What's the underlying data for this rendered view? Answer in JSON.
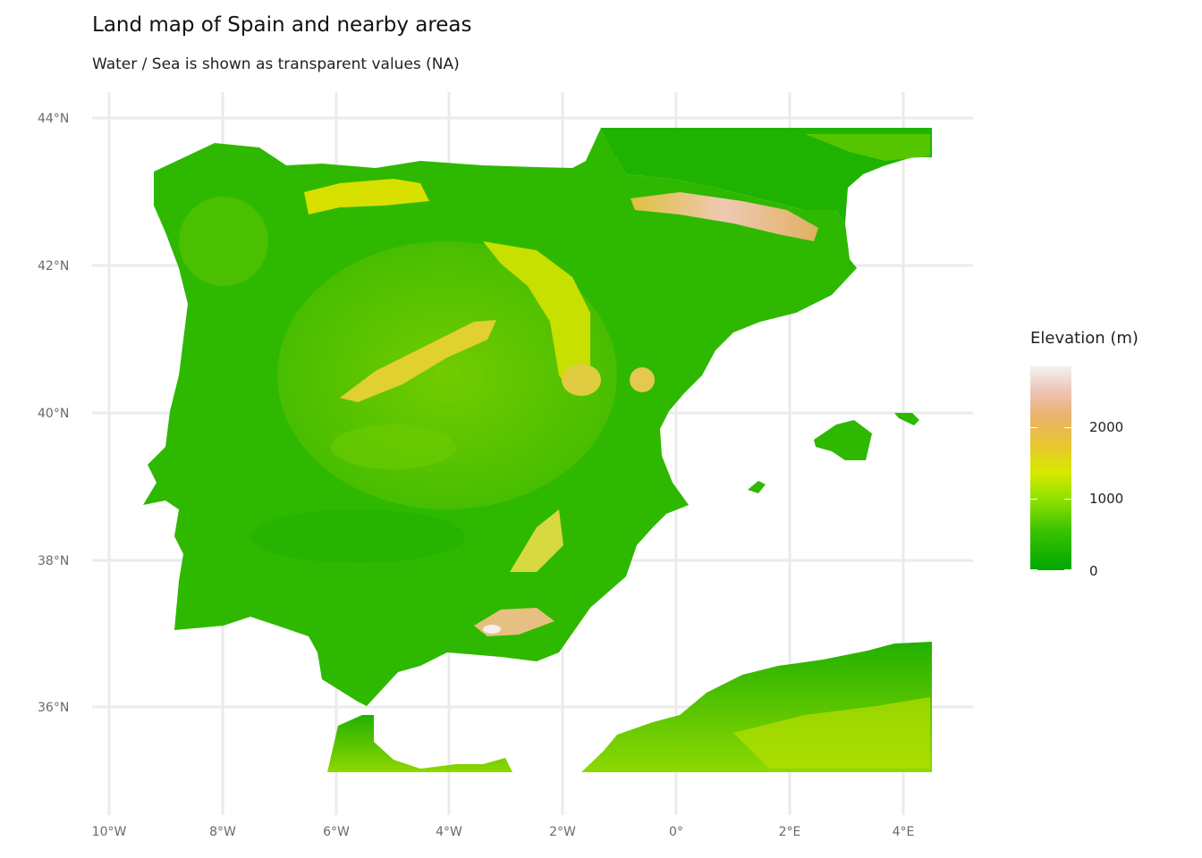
{
  "title": "Land map of Spain and nearby areas",
  "subtitle": "Water / Sea is shown as transparent values (NA)",
  "legend": {
    "title": "Elevation (m)",
    "labels": [
      "2000",
      "1000",
      "0"
    ],
    "colors": [
      "#00a600",
      "#3cc400",
      "#8be000",
      "#d6ea00",
      "#e8c532",
      "#ebb16f",
      "#eec4b7",
      "#f2f2f2"
    ]
  },
  "axes": {
    "y_ticks": [
      "44°N",
      "42°N",
      "40°N",
      "38°N",
      "36°N"
    ],
    "x_ticks": [
      "10°W",
      "8°W",
      "6°W",
      "4°W",
      "2°W",
      "0°",
      "2°E",
      "4°E"
    ]
  },
  "map": {
    "regions": [
      "Iberian Peninsula",
      "Southern France",
      "Mallorca",
      "Menorca",
      "Ibiza",
      "Northern Morocco",
      "Northern Algeria"
    ],
    "grid": true
  }
}
